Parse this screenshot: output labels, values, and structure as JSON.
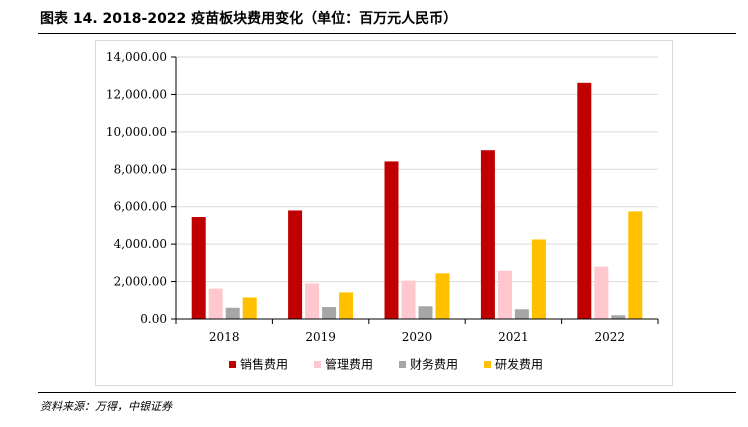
{
  "page": {
    "title": "图表 14. 2018-2022 疫苗板块费用变化（单位：百万元人民币）",
    "source": "资料来源：万得，中银证券"
  },
  "chart_data": {
    "type": "bar",
    "title": "",
    "xlabel": "",
    "ylabel": "",
    "categories": [
      "2018",
      "2019",
      "2020",
      "2021",
      "2022"
    ],
    "series": [
      {
        "name": "销售费用",
        "color": "#c00000",
        "values": [
          5450,
          5800,
          8420,
          9020,
          12620
        ]
      },
      {
        "name": "管理费用",
        "color": "#ffc7ce",
        "values": [
          1620,
          1900,
          2050,
          2580,
          2800
        ]
      },
      {
        "name": "财务费用",
        "color": "#a6a6a6",
        "values": [
          600,
          640,
          680,
          520,
          200
        ]
      },
      {
        "name": "研发费用",
        "color": "#ffc000",
        "values": [
          1150,
          1420,
          2440,
          4250,
          5750
        ]
      }
    ],
    "ylim": [
      0,
      14000
    ],
    "yticks": [
      0,
      2000,
      4000,
      6000,
      8000,
      10000,
      12000,
      14000
    ],
    "ytick_labels": [
      "0.00",
      "2,000.00",
      "4,000.00",
      "6,000.00",
      "8,000.00",
      "10,000.00",
      "12,000.00",
      "14,000.00"
    ],
    "grid": true,
    "legend_position": "bottom"
  }
}
